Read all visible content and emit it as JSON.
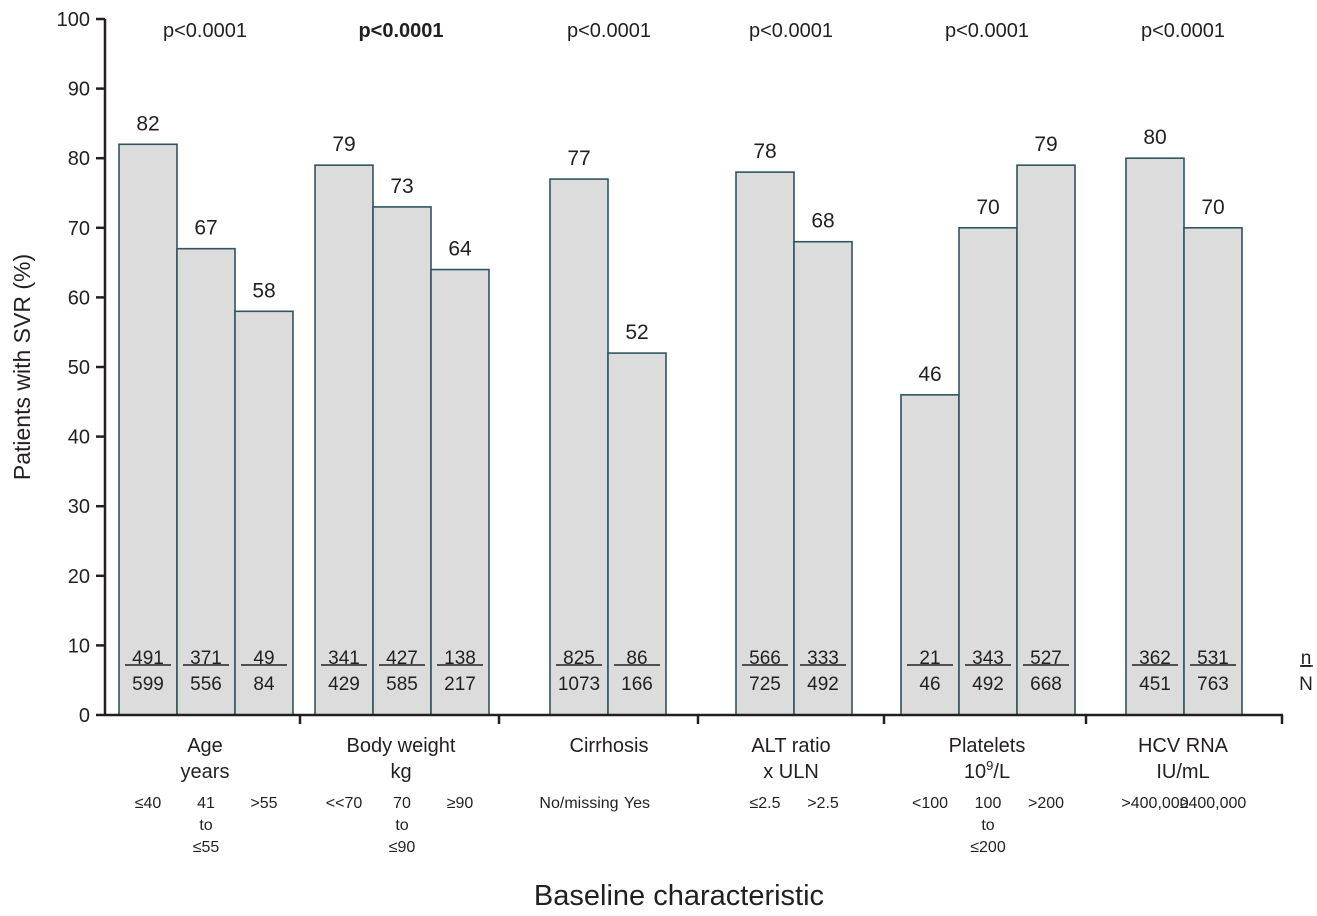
{
  "chart_data": {
    "type": "bar",
    "ylabel": "Patients with SVR (%)",
    "xlabel": "Baseline characteristic",
    "ylim": [
      0,
      100
    ],
    "yticks": [
      0,
      10,
      20,
      30,
      40,
      50,
      60,
      70,
      80,
      90,
      100
    ],
    "nz_label": {
      "n": "n",
      "z": "N"
    },
    "groups": [
      {
        "name": "Age",
        "unit": "years",
        "pvalue": "p<0.0001",
        "pvalue_bold": false,
        "categories": [
          {
            "label": "≤40",
            "value": 82,
            "n": "491",
            "N": "599"
          },
          {
            "label": "41\nto\n≤55",
            "value": 67,
            "n": "371",
            "N": "556"
          },
          {
            "label": ">55",
            "value": 58,
            "n": "49",
            "N": "84"
          }
        ]
      },
      {
        "name": "Body weight",
        "unit": "kg",
        "pvalue": "p<0.0001",
        "pvalue_bold": true,
        "categories": [
          {
            "label": "<<70",
            "value": 79,
            "n": "341",
            "N": "429"
          },
          {
            "label": "70\nto\n≤90",
            "value": 73,
            "n": "427",
            "N": "585"
          },
          {
            "label": "≥90",
            "value": 64,
            "n": "138",
            "N": "217"
          }
        ]
      },
      {
        "name": "Cirrhosis",
        "unit": "",
        "pvalue": "p<0.0001",
        "pvalue_bold": false,
        "categories": [
          {
            "label": "No/missing",
            "value": 77,
            "n": "825",
            "N": "1073"
          },
          {
            "label": "Yes",
            "value": 52,
            "n": "86",
            "N": "166"
          }
        ]
      },
      {
        "name": "ALT ratio",
        "unit": "x ULN",
        "pvalue": "p<0.0001",
        "pvalue_bold": false,
        "categories": [
          {
            "label": "≤2.5",
            "value": 78,
            "n": "566",
            "N": "725"
          },
          {
            "label": ">2.5",
            "value": 68,
            "n": "333",
            "N": "492"
          }
        ]
      },
      {
        "name": "Platelets",
        "unit_base": "10",
        "unit_sup": "9",
        "unit_tail": "/L",
        "pvalue": "p<0.0001",
        "pvalue_bold": false,
        "categories": [
          {
            "label": "<100",
            "value": 46,
            "n": "21",
            "N": "46"
          },
          {
            "label": "100\nto\n≤200",
            "value": 70,
            "n": "343",
            "N": "492"
          },
          {
            "label": ">200",
            "value": 79,
            "n": "527",
            "N": "668"
          }
        ]
      },
      {
        "name": "HCV RNA",
        "unit": "IU/mL",
        "pvalue": "p<0.0001",
        "pvalue_bold": false,
        "categories": [
          {
            "label": ">400,000",
            "value": 80,
            "n": "362",
            "N": "451"
          },
          {
            "label": "≥400,000",
            "value": 70,
            "n": "531",
            "N": "763"
          }
        ]
      }
    ]
  }
}
